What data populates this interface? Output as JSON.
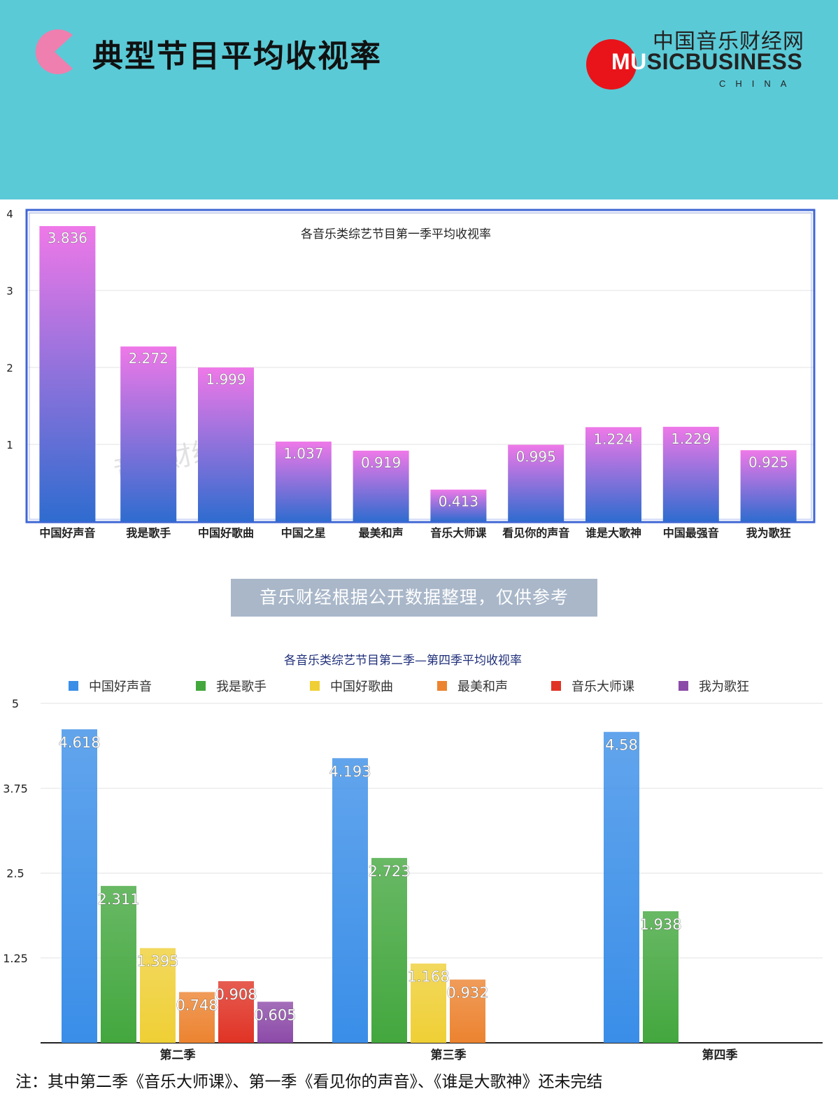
{
  "header": {
    "title": "典型节目平均收视率",
    "logo_cn": "中国音乐财经网",
    "logo_en_white": "MU",
    "logo_en_dark": "SICBUSINESS",
    "logo_china": "CHINA"
  },
  "note_box": "音乐财经根据公开数据整理，仅供参考",
  "footnote": "注：其中第二季《音乐大师课》、第一季《看见你的声音》、《谁是大歌神》还未完结",
  "chart_data": [
    {
      "type": "bar",
      "title": "各音乐类综艺节目第一季平均收视率",
      "watermark": "音乐财经",
      "categories": [
        "中国好声音",
        "我是歌手",
        "中国好歌曲",
        "中国之星",
        "最美和声",
        "音乐大师课",
        "看见你的声音",
        "谁是大歌神",
        "中国最强音",
        "我为歌狂"
      ],
      "values": [
        3.836,
        2.272,
        1.999,
        1.037,
        0.919,
        0.413,
        0.995,
        1.224,
        1.229,
        0.925
      ],
      "ylim": [
        0,
        4
      ],
      "yticks": [
        "1",
        "2",
        "3",
        "4"
      ],
      "grid": true,
      "legend": "none",
      "colors": {
        "bar_top": "#ef78e8",
        "bar_bottom": "#2f6ccf",
        "frame": "#3f66d4"
      }
    },
    {
      "type": "bar",
      "title": "各音乐类综艺节目第二季—第四季平均收视率",
      "categories": [
        "第二季",
        "第三季",
        "第四季"
      ],
      "series": [
        {
          "name": "中国好声音",
          "values": [
            4.618,
            4.193,
            4.58
          ],
          "color": "#3a8ee8"
        },
        {
          "name": "我是歌手",
          "values": [
            2.311,
            2.723,
            1.938
          ],
          "color": "#43a73e"
        },
        {
          "name": "中国好歌曲",
          "values": [
            1.395,
            1.168,
            null
          ],
          "color": "#efcf35"
        },
        {
          "name": "最美和声",
          "values": [
            0.748,
            0.932,
            null
          ],
          "color": "#ec8330"
        },
        {
          "name": "音乐大师课",
          "values": [
            0.908,
            null,
            null
          ],
          "color": "#e03325"
        },
        {
          "name": "我为歌狂",
          "values": [
            0.605,
            null,
            null
          ],
          "color": "#8c4aa8"
        }
      ],
      "ylim": [
        0,
        5
      ],
      "yticks": [
        "1.25",
        "2.5",
        "3.75",
        "5"
      ],
      "grid": true,
      "legend": "top"
    }
  ]
}
